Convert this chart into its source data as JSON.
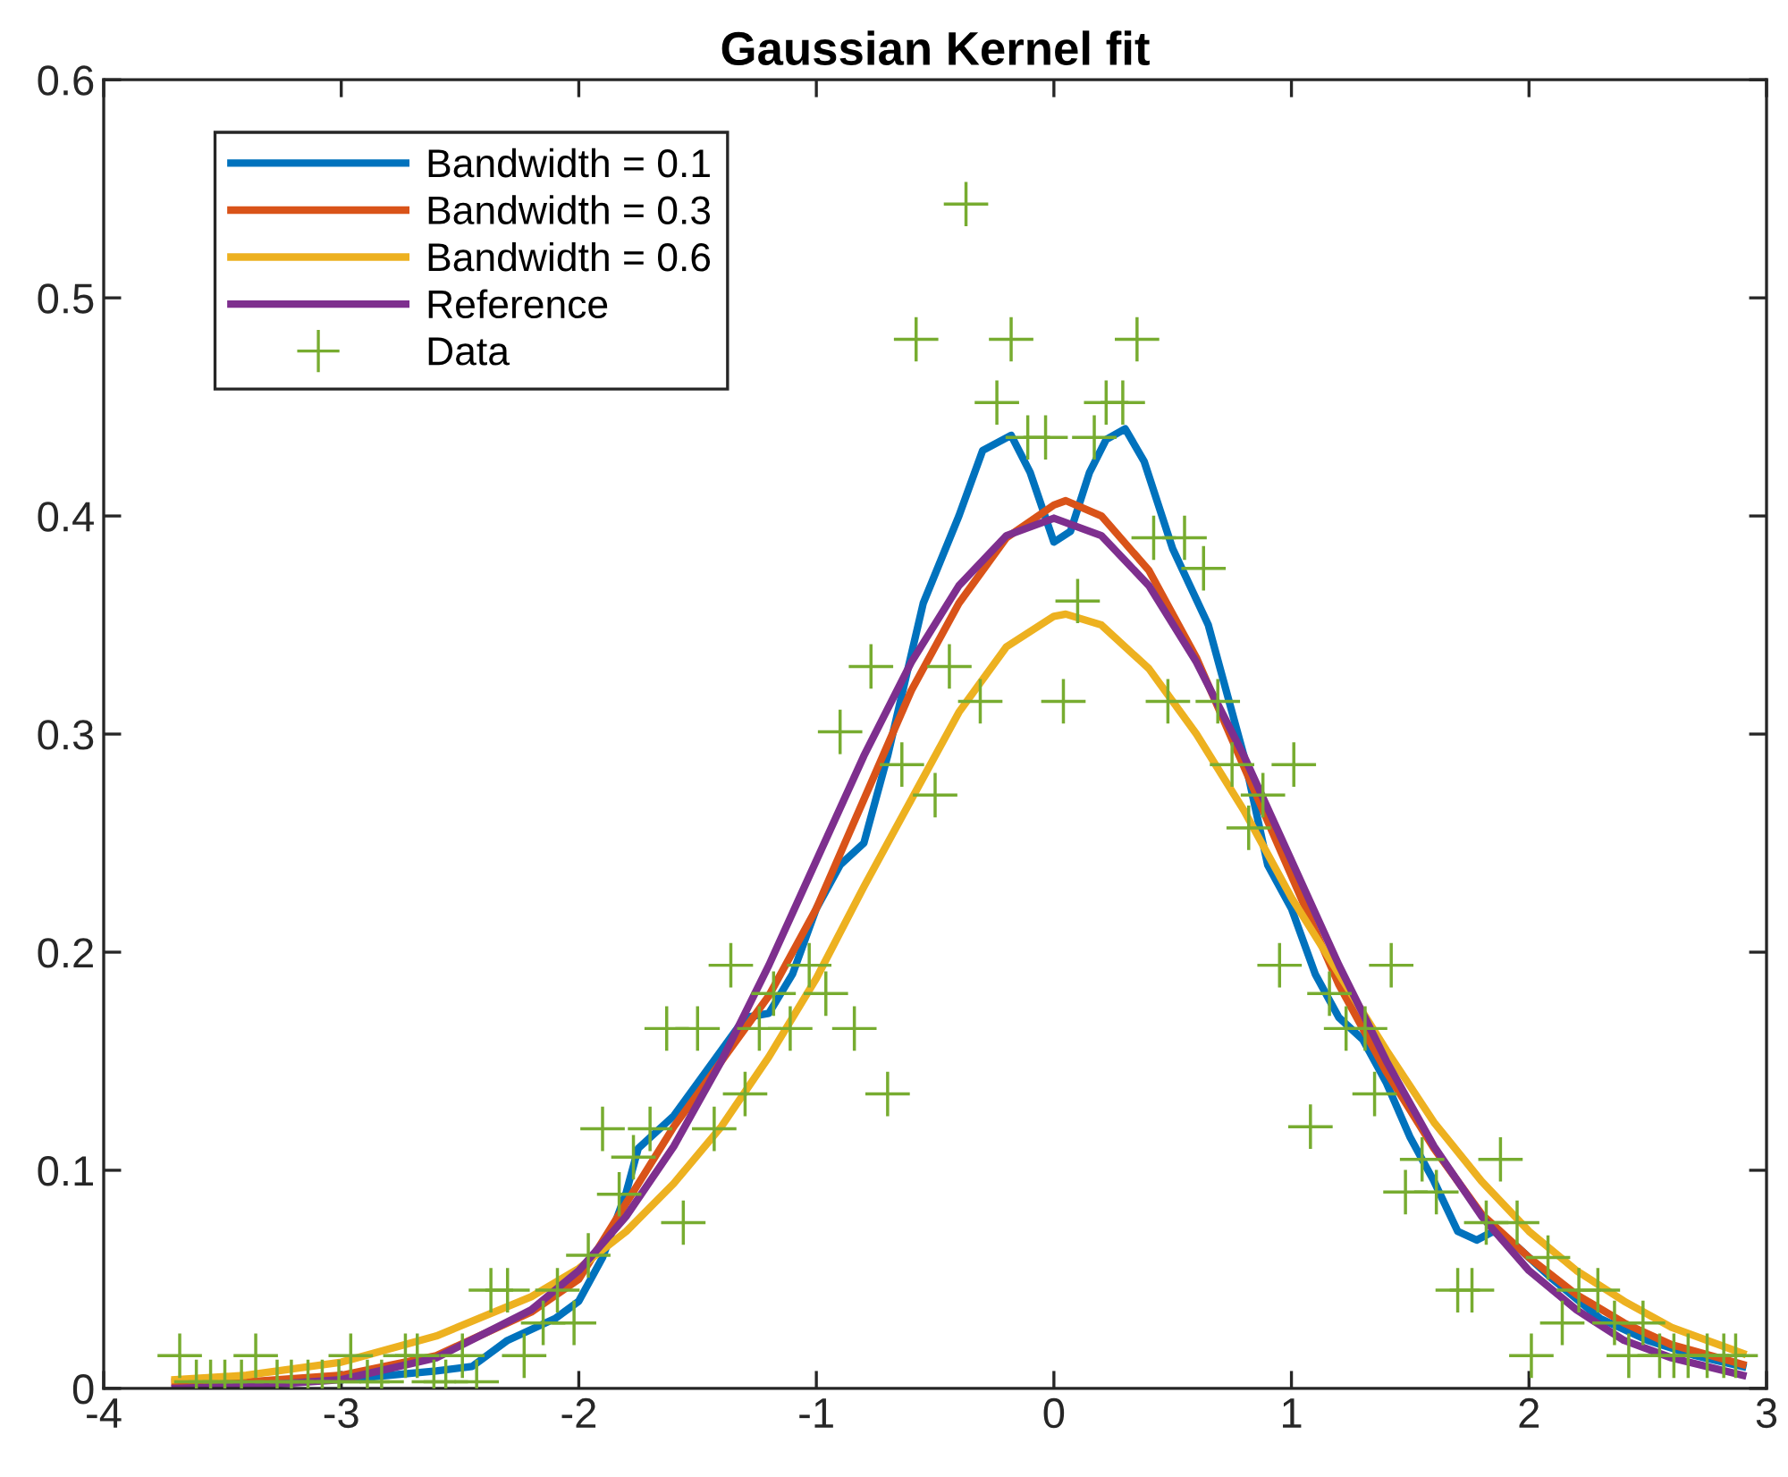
{
  "chart_data": {
    "type": "line",
    "title": "Gaussian Kernel fit",
    "xlim": [
      -4,
      3
    ],
    "ylim": [
      0,
      0.6
    ],
    "xticks": [
      -4,
      -3,
      -2,
      -1,
      0,
      1,
      2,
      3
    ],
    "yticks": [
      0,
      0.1,
      0.2,
      0.3,
      0.4,
      0.5,
      0.6
    ],
    "grid": false,
    "legend": "top left",
    "line_style": "solid",
    "series": [
      {
        "name": "Bandwidth = 0.1",
        "color": "#0072bd",
        "x": [
          -3.0,
          -2.6,
          -2.45,
          -2.3,
          -2.1,
          -2.0,
          -1.9,
          -1.8,
          -1.75,
          -1.6,
          -1.5,
          -1.3,
          -1.2,
          -1.1,
          -1.0,
          -0.9,
          -0.8,
          -0.7,
          -0.55,
          -0.4,
          -0.3,
          -0.18,
          -0.1,
          0.0,
          0.07,
          0.15,
          0.22,
          0.3,
          0.38,
          0.5,
          0.65,
          0.8,
          0.9,
          1.0,
          1.1,
          1.2,
          1.3,
          1.4,
          1.5,
          1.6,
          1.7,
          1.78,
          1.85,
          1.95,
          2.1,
          2.3,
          2.5,
          2.7,
          2.9
        ],
        "values": [
          0.004,
          0.008,
          0.01,
          0.022,
          0.032,
          0.04,
          0.06,
          0.09,
          0.11,
          0.125,
          0.14,
          0.17,
          0.172,
          0.19,
          0.22,
          0.24,
          0.25,
          0.29,
          0.36,
          0.4,
          0.43,
          0.437,
          0.42,
          0.388,
          0.393,
          0.42,
          0.435,
          0.44,
          0.425,
          0.385,
          0.35,
          0.29,
          0.24,
          0.22,
          0.19,
          0.17,
          0.16,
          0.14,
          0.115,
          0.095,
          0.072,
          0.068,
          0.072,
          0.065,
          0.05,
          0.032,
          0.022,
          0.015,
          0.01
        ]
      },
      {
        "name": "Bandwidth = 0.3",
        "color": "#d95319",
        "x": [
          -3.7,
          -3.4,
          -3.0,
          -2.6,
          -2.2,
          -2.0,
          -1.8,
          -1.6,
          -1.4,
          -1.2,
          -1.0,
          -0.8,
          -0.6,
          -0.4,
          -0.2,
          0,
          0.05,
          0.2,
          0.4,
          0.6,
          0.8,
          1.0,
          1.2,
          1.4,
          1.6,
          1.8,
          2.0,
          2.2,
          2.4,
          2.6,
          2.9
        ],
        "values": [
          0.003,
          0.003,
          0.006,
          0.015,
          0.035,
          0.05,
          0.085,
          0.12,
          0.15,
          0.18,
          0.22,
          0.27,
          0.32,
          0.36,
          0.39,
          0.405,
          0.407,
          0.4,
          0.375,
          0.335,
          0.285,
          0.235,
          0.185,
          0.145,
          0.11,
          0.08,
          0.06,
          0.043,
          0.03,
          0.02,
          0.011
        ]
      },
      {
        "name": "Bandwidth = 0.6",
        "color": "#edb120",
        "x": [
          -3.7,
          -3.4,
          -3.0,
          -2.6,
          -2.2,
          -2.0,
          -1.8,
          -1.6,
          -1.4,
          -1.2,
          -1.0,
          -0.8,
          -0.6,
          -0.4,
          -0.2,
          0,
          0.05,
          0.2,
          0.4,
          0.6,
          0.8,
          1.0,
          1.2,
          1.4,
          1.6,
          1.8,
          2.0,
          2.2,
          2.4,
          2.6,
          2.9
        ],
        "values": [
          0.004,
          0.006,
          0.012,
          0.024,
          0.042,
          0.055,
          0.072,
          0.094,
          0.12,
          0.152,
          0.188,
          0.23,
          0.27,
          0.31,
          0.34,
          0.354,
          0.355,
          0.35,
          0.33,
          0.3,
          0.265,
          0.225,
          0.19,
          0.155,
          0.122,
          0.095,
          0.072,
          0.054,
          0.04,
          0.028,
          0.016
        ]
      },
      {
        "name": "Reference",
        "color": "#7e2f8e",
        "x": [
          -3.7,
          -3.4,
          -3.0,
          -2.6,
          -2.2,
          -2.0,
          -1.8,
          -1.6,
          -1.4,
          -1.2,
          -1.0,
          -0.8,
          -0.6,
          -0.4,
          -0.2,
          0,
          0.2,
          0.4,
          0.6,
          0.8,
          1.0,
          1.2,
          1.4,
          1.6,
          1.8,
          2.0,
          2.2,
          2.4,
          2.6,
          2.9
        ],
        "values": [
          0,
          0.001,
          0.004,
          0.014,
          0.036,
          0.054,
          0.079,
          0.111,
          0.15,
          0.194,
          0.242,
          0.29,
          0.333,
          0.368,
          0.391,
          0.399,
          0.391,
          0.368,
          0.333,
          0.29,
          0.242,
          0.194,
          0.15,
          0.111,
          0.079,
          0.054,
          0.036,
          0.022,
          0.014,
          0.006
        ]
      },
      {
        "name": "Data",
        "color": "#77ac30",
        "type": "scatter",
        "marker": "cross",
        "x": [
          -3.68,
          -3.61,
          -3.55,
          -3.49,
          -3.42,
          -3.36,
          -3.27,
          -3.21,
          -3.14,
          -3.08,
          -3.01,
          -2.96,
          -2.89,
          -2.83,
          -2.73,
          -2.68,
          -2.61,
          -2.56,
          -2.49,
          -2.43,
          -2.37,
          -2.3,
          -2.23,
          -2.15,
          -2.09,
          -2.02,
          -1.96,
          -1.9,
          -1.83,
          -1.77,
          -1.7,
          -1.63,
          -1.56,
          -1.5,
          -1.43,
          -1.36,
          -1.3,
          -1.24,
          -1.18,
          -1.11,
          -1.03,
          -0.96,
          -0.9,
          -0.84,
          -0.77,
          -0.7,
          -0.64,
          -0.58,
          -0.5,
          -0.44,
          -0.37,
          -0.31,
          -0.24,
          -0.18,
          -0.11,
          -0.035,
          0.04,
          0.1,
          0.17,
          0.22,
          0.29,
          0.35,
          0.42,
          0.48,
          0.55,
          0.63,
          0.69,
          0.75,
          0.82,
          0.88,
          0.95,
          1.01,
          1.08,
          1.16,
          1.23,
          1.31,
          1.35,
          1.42,
          1.48,
          1.55,
          1.61,
          1.7,
          1.76,
          1.82,
          1.88,
          1.95,
          2.01,
          2.08,
          2.14,
          2.21,
          2.29,
          2.36,
          2.42,
          2.48,
          2.55,
          2.61,
          2.67,
          2.75,
          2.82,
          2.87
        ],
        "values": [
          0.015,
          0.003,
          0.003,
          0.003,
          0.003,
          0.015,
          0.003,
          0.003,
          0.003,
          0.003,
          0.003,
          0.015,
          0.003,
          0.003,
          0.015,
          0.015,
          0.003,
          0.003,
          0.015,
          0.003,
          0.045,
          0.045,
          0.015,
          0.03,
          0.045,
          0.03,
          0.061,
          0.119,
          0.089,
          0.106,
          0.119,
          0.165,
          0.076,
          0.165,
          0.119,
          0.194,
          0.135,
          0.165,
          0.181,
          0.165,
          0.194,
          0.181,
          0.301,
          0.165,
          0.331,
          0.135,
          0.286,
          0.481,
          0.272,
          0.331,
          0.543,
          0.315,
          0.452,
          0.481,
          0.436,
          0.436,
          0.315,
          0.361,
          0.436,
          0.452,
          0.452,
          0.481,
          0.39,
          0.315,
          0.39,
          0.376,
          0.315,
          0.286,
          0.257,
          0.272,
          0.194,
          0.286,
          0.12,
          0.181,
          0.165,
          0.165,
          0.135,
          0.194,
          0.09,
          0.105,
          0.09,
          0.045,
          0.045,
          0.076,
          0.105,
          0.076,
          0.015,
          0.06,
          0.03,
          0.045,
          0.045,
          0.03,
          0.015,
          0.03,
          0.015,
          0.015,
          0.015,
          0.015,
          0.015,
          0.015
        ]
      }
    ]
  }
}
